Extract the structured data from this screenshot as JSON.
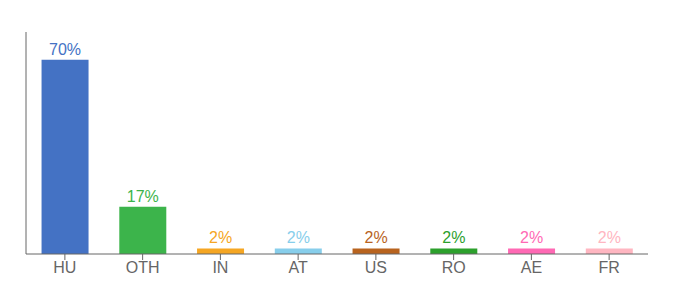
{
  "chart_data": {
    "type": "bar",
    "categories": [
      "HU",
      "OTH",
      "IN",
      "AT",
      "US",
      "RO",
      "AE",
      "FR"
    ],
    "values": [
      70,
      17,
      2,
      2,
      2,
      2,
      2,
      2
    ],
    "value_labels": [
      "70%",
      "17%",
      "2%",
      "2%",
      "2%",
      "2%",
      "2%",
      "2%"
    ],
    "colors": [
      "#4472C4",
      "#3cb44b",
      "#f5a623",
      "#87CEEB",
      "#b8631e",
      "#2ca02c",
      "#FF69B4",
      "#FFB6C1"
    ],
    "ylim": [
      0,
      80
    ],
    "grid": false,
    "tick_labels": "x"
  }
}
